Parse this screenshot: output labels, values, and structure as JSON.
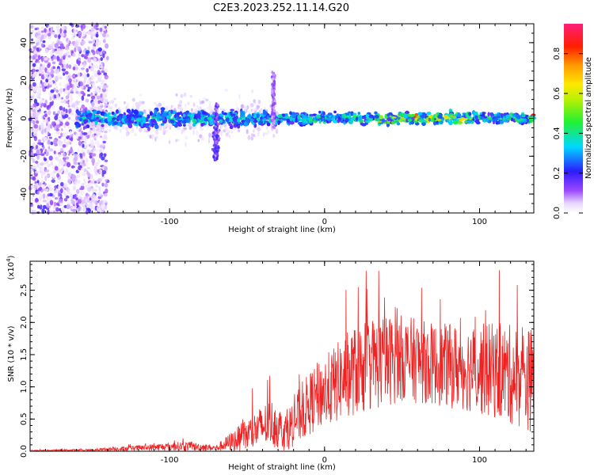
{
  "figure": {
    "title": "C2E3.2023.252.11.14.G20"
  },
  "chart_data": [
    {
      "type": "heatmap",
      "xlabel": "Height of straight line (km)",
      "ylabel": "Frequency (Hz)",
      "xlim": [
        -190,
        135
      ],
      "ylim": [
        -50,
        50
      ],
      "x_ticks": [
        -100,
        0,
        100
      ],
      "x_tick_labels": [
        "-100",
        "0",
        "100"
      ],
      "y_ticks": [
        -40,
        -20,
        0,
        20,
        40
      ],
      "y_tick_labels": [
        "-40",
        "-20",
        "0",
        "20",
        "40"
      ],
      "colorbar": {
        "label": "Normalized spectral amplitude",
        "range": [
          0,
          0.95
        ],
        "ticks": [
          0.0,
          0.2,
          0.4,
          0.6,
          0.8
        ],
        "tick_labels": [
          "0.0",
          "0.2",
          "0.4",
          "0.6",
          "0.8"
        ],
        "colormap": "rainbow (white-purple-blue-cyan-green-yellow-orange-red-magenta)"
      },
      "grid": false,
      "features": {
        "main_band_center_hz": 0,
        "main_band_halfwidth_hz": 5,
        "main_band_x_range": [
          -160,
          135
        ],
        "noise_scatter_x_range": [
          -190,
          -150
        ],
        "peak_amplitude_region_x": [
          35,
          95
        ]
      }
    },
    {
      "type": "line",
      "xlabel": "Height of straight line (km)",
      "ylabel": "SNR (10 * v/v)",
      "y_scale_label": "(x10",
      "y_scale_exponent": "4",
      "xlim": [
        -190,
        135
      ],
      "ylim": [
        0,
        2.95
      ],
      "x_ticks": [
        -100,
        0,
        100
      ],
      "x_tick_labels": [
        "-100",
        "0",
        "100"
      ],
      "y_ticks": [
        0.0,
        0.5,
        1.0,
        1.5,
        2.0,
        2.5
      ],
      "y_tick_labels": [
        "0.0",
        "0.5",
        "1.0",
        "1.5",
        "2.0",
        "2.5"
      ],
      "line_color": "#ee2222",
      "grid": false,
      "envelope": {
        "x": [
          -190,
          -150,
          -120,
          -90,
          -70,
          -50,
          -35,
          -25,
          -15,
          -5,
          5,
          15,
          30,
          50,
          70,
          90,
          110,
          135
        ],
        "mean": [
          0.01,
          0.02,
          0.05,
          0.08,
          0.05,
          0.25,
          0.45,
          0.3,
          0.6,
          0.85,
          1.0,
          1.2,
          1.35,
          1.45,
          1.35,
          1.3,
          1.25,
          1.1
        ],
        "spread": [
          0.01,
          0.02,
          0.06,
          0.1,
          0.06,
          0.35,
          0.5,
          0.4,
          0.6,
          0.7,
          0.8,
          0.9,
          1.0,
          0.9,
          0.85,
          0.9,
          1.0,
          1.1
        ]
      }
    }
  ]
}
